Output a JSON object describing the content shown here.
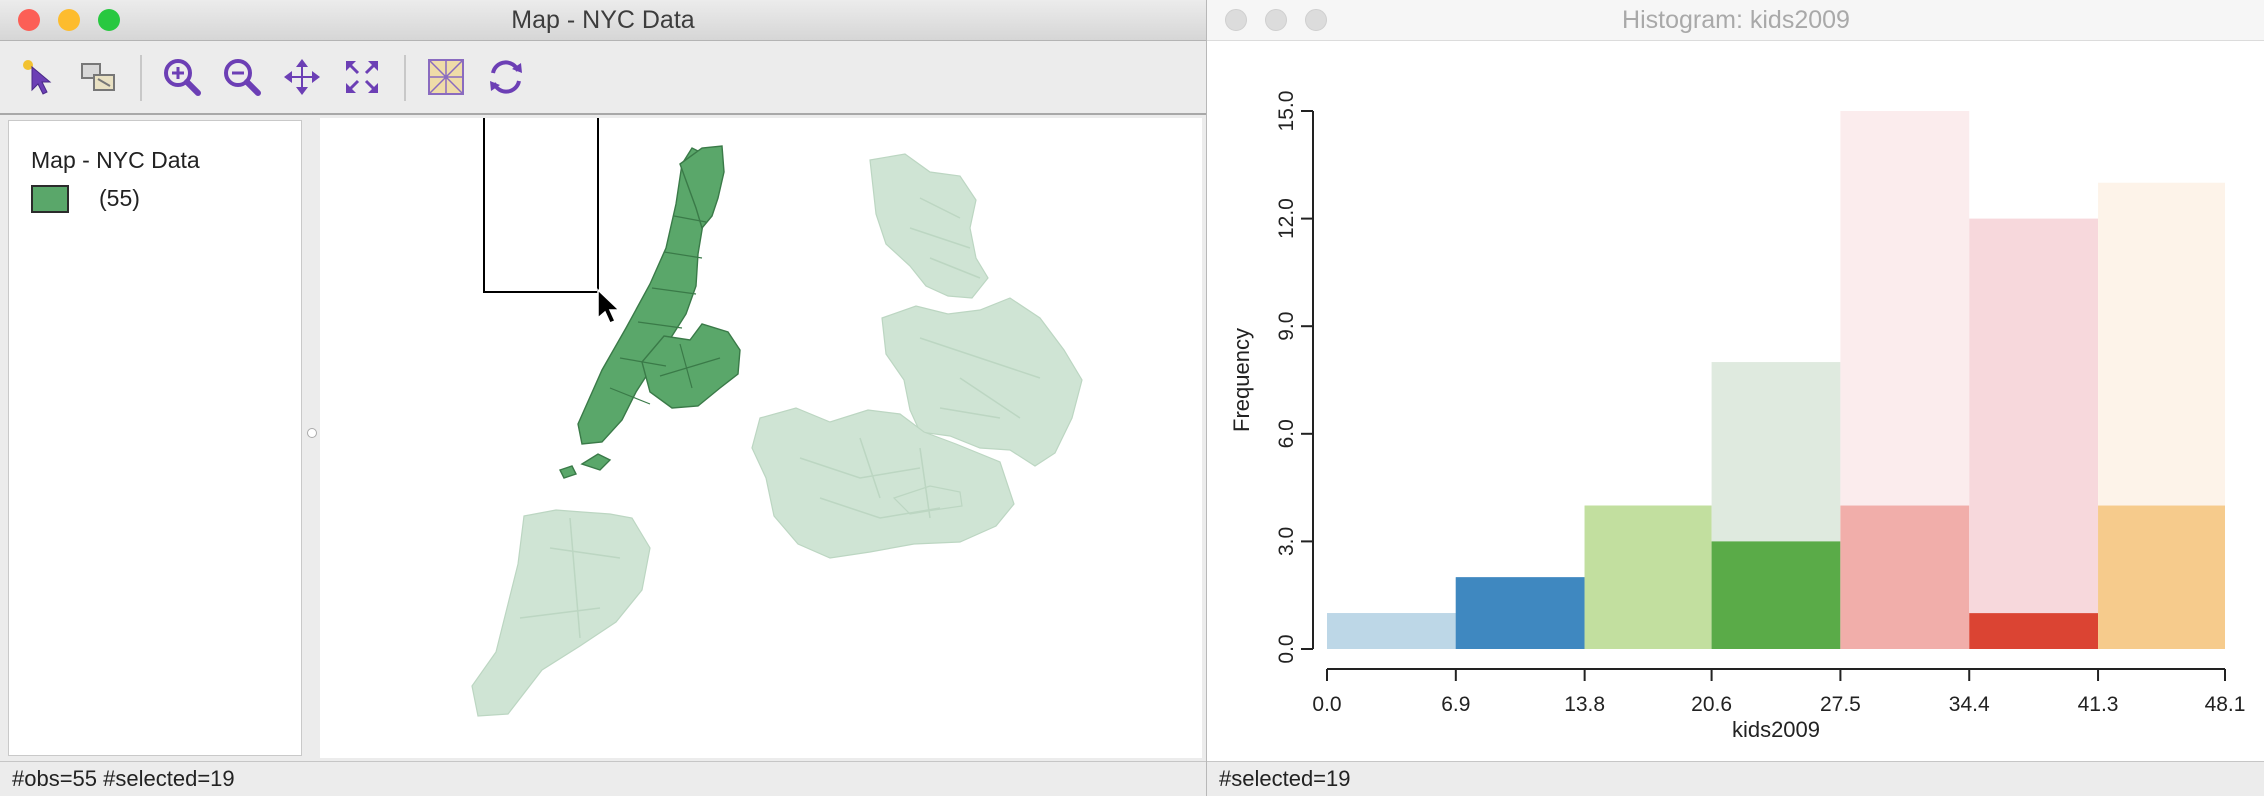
{
  "map_window": {
    "title": "Map - NYC Data",
    "window_controls": {
      "close": "#fc5f56",
      "minimize": "#fdbc2e",
      "zoom": "#28c840"
    },
    "toolbar": [
      {
        "name": "select-pointer-icon"
      },
      {
        "name": "selection-shape-icon"
      },
      {
        "name": "zoom-in-icon"
      },
      {
        "name": "zoom-out-icon"
      },
      {
        "name": "pan-icon"
      },
      {
        "name": "fit-to-window-icon"
      },
      {
        "name": "map-layer-icon"
      },
      {
        "name": "refresh-icon"
      }
    ],
    "legend": {
      "title": "Map - NYC Data",
      "items": [
        {
          "label": "(55)",
          "color": "#5aa76a"
        }
      ]
    },
    "map": {
      "selected_color": "#5aa76a",
      "unselected_color": "#cfe4d4",
      "selected_count": 19,
      "total": 55
    },
    "status": "#obs=55 #selected=19"
  },
  "histogram_window": {
    "title": "Histogram: kids2009",
    "status": "#selected=19",
    "chart_data": {
      "type": "bar",
      "title": "",
      "xlabel": "kids2009",
      "ylabel": "Frequency",
      "ylim": [
        0,
        15
      ],
      "xlim": [
        0.0,
        48.1
      ],
      "y_ticks": [
        "0.0",
        "3.0",
        "6.0",
        "9.0",
        "12.0",
        "15.0"
      ],
      "x_ticks": [
        "0.0",
        "6.9",
        "13.8",
        "20.6",
        "27.5",
        "34.4",
        "41.3",
        "48.1"
      ],
      "bins": [
        {
          "from": 0.0,
          "to": 6.9,
          "total": 1,
          "selected": 1,
          "faded": "#bdd7e7",
          "selected_color": "#bdd7e7"
        },
        {
          "from": 6.9,
          "to": 13.8,
          "total": 2,
          "selected": 2,
          "faded": "#3f88c0",
          "selected_color": "#3f88c0"
        },
        {
          "from": 13.8,
          "to": 20.6,
          "total": 4,
          "selected": 4,
          "faded": "#c2df9f",
          "selected_color": "#c2df9f"
        },
        {
          "from": 20.6,
          "to": 27.5,
          "total": 8,
          "selected": 3,
          "faded": "#dfeadf",
          "selected_color": "#5aab48"
        },
        {
          "from": 27.5,
          "to": 34.4,
          "total": 15,
          "selected": 4,
          "faded": "#fbeced",
          "selected_color": "#f1aeaa"
        },
        {
          "from": 34.4,
          "to": 41.3,
          "total": 12,
          "selected": 1,
          "faded": "#f7d8dc",
          "selected_color": "#db4433"
        },
        {
          "from": 41.3,
          "to": 48.1,
          "total": 13,
          "selected": 4,
          "faded": "#fdf3e9",
          "selected_color": "#f6cb8c"
        }
      ]
    }
  }
}
